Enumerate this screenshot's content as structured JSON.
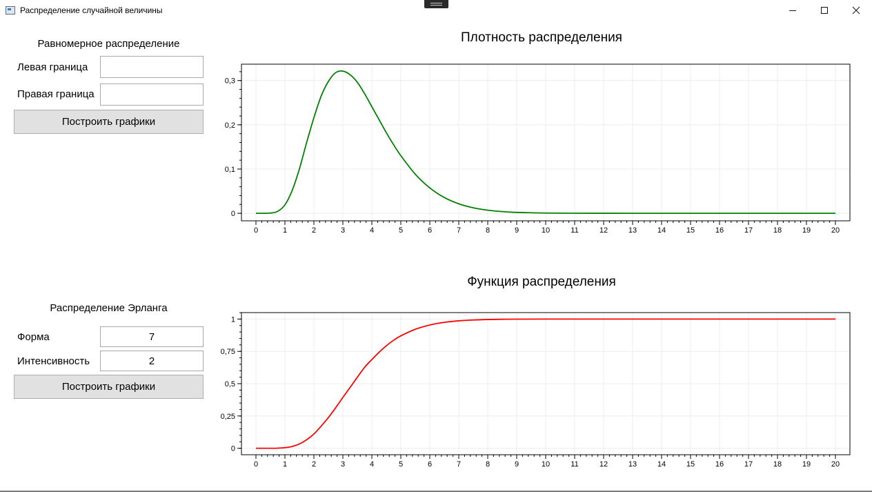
{
  "window": {
    "title": "Распределение случайной величины",
    "minimize_icon": "minimize-icon",
    "maximize_icon": "maximize-icon",
    "close_icon": "close-icon"
  },
  "uniform": {
    "title": "Равномерное распределение",
    "left_label": "Левая граница",
    "left_value": "",
    "right_label": "Правая граница",
    "right_value": "",
    "build_button": "Построить графики"
  },
  "erlang": {
    "title": "Распределение Эрланга",
    "shape_label": "Форма",
    "shape_value": "7",
    "intensity_label": "Интенсивность",
    "intensity_value": "2",
    "build_button": "Построить графики"
  },
  "chart_data": [
    {
      "type": "line",
      "title": "Плотность распределения",
      "xlabel": "",
      "ylabel": "",
      "xlim": [
        -0.5,
        20.5
      ],
      "ylim": [
        -0.017,
        0.337
      ],
      "x_ticks": [
        0,
        1,
        2,
        3,
        4,
        5,
        6,
        7,
        8,
        9,
        10,
        11,
        12,
        13,
        14,
        15,
        16,
        17,
        18,
        19,
        20
      ],
      "y_ticks": [
        0,
        0.1,
        0.2,
        0.3
      ],
      "y_tick_labels": [
        "0",
        "0,1",
        "0,2",
        "0,3"
      ],
      "grid": true,
      "color": "#008000",
      "series": [
        {
          "x": [
            0,
            0.25,
            0.5,
            0.75,
            1,
            1.25,
            1.5,
            1.75,
            2,
            2.25,
            2.5,
            2.75,
            3,
            3.25,
            3.5,
            3.75,
            4,
            4.25,
            4.5,
            4.75,
            5,
            5.5,
            6,
            6.5,
            7,
            7.5,
            8,
            8.5,
            9,
            10,
            11,
            12,
            13,
            14,
            15,
            16,
            17,
            18,
            19,
            20
          ],
          "y": [
            0,
            1e-05,
            0.00049,
            0.00446,
            0.0191,
            0.0515,
            0.1004,
            0.1601,
            0.216,
            0.2647,
            0.298,
            0.3178,
            0.3213,
            0.3131,
            0.296,
            0.2702,
            0.2409,
            0.2116,
            0.1822,
            0.155,
            0.1302,
            0.0883,
            0.0573,
            0.0357,
            0.0214,
            0.0124,
            0.007,
            0.0038,
            0.002,
            0.0005,
            0.0001,
            3e-05,
            1e-05,
            0,
            0,
            0,
            0,
            0,
            0,
            0
          ]
        }
      ]
    },
    {
      "type": "line",
      "title": "Функция распределения",
      "xlabel": "",
      "ylabel": "",
      "xlim": [
        -0.5,
        20.5
      ],
      "ylim": [
        -0.05,
        1.05
      ],
      "x_ticks": [
        0,
        1,
        2,
        3,
        4,
        5,
        6,
        7,
        8,
        9,
        10,
        11,
        12,
        13,
        14,
        15,
        16,
        17,
        18,
        19,
        20
      ],
      "y_ticks": [
        0,
        0.25,
        0.5,
        0.75,
        1
      ],
      "y_tick_labels": [
        "0",
        "0,25",
        "0,5",
        "0,75",
        "1"
      ],
      "grid": true,
      "color": "#ff0000",
      "series": [
        {
          "x": [
            0,
            0.25,
            0.5,
            0.75,
            1,
            1.25,
            1.5,
            1.75,
            2,
            2.25,
            2.5,
            2.75,
            3,
            3.25,
            3.5,
            3.75,
            4,
            4.25,
            4.5,
            4.75,
            5,
            5.5,
            6,
            6.5,
            7,
            7.5,
            8,
            8.5,
            9,
            10,
            12,
            14,
            16,
            18,
            20
          ],
          "y": [
            0,
            0,
            7e-05,
            0.0009,
            0.0045,
            0.0142,
            0.0335,
            0.066,
            0.1107,
            0.1714,
            0.2378,
            0.3134,
            0.3937,
            0.4713,
            0.5503,
            0.6267,
            0.6866,
            0.7434,
            0.7932,
            0.8361,
            0.8699,
            0.9211,
            0.9542,
            0.9744,
            0.9862,
            0.9928,
            0.9964,
            0.9982,
            0.9991,
            0.9998,
            1,
            1,
            1,
            1,
            1
          ]
        }
      ]
    }
  ]
}
